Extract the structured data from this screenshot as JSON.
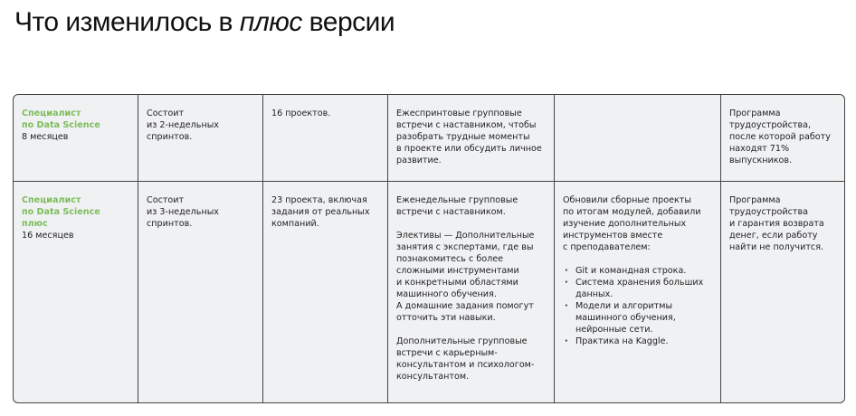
{
  "title": {
    "before": "Что изменилось в ",
    "italic": "плюс",
    "after": " версии"
  },
  "colors": {
    "accent_green": "#7cbd5b",
    "table_bg": "#f0f1f3",
    "border": "#444444"
  },
  "rows": [
    {
      "program": "Специалист\nпо Data Science",
      "duration": "8 месяцев",
      "sprints": "Состоит\nиз 2-недельных\nспринтов.",
      "projects": "16 проектов.",
      "mentoring": [
        "Ежеспринтовые групповые\nвстречи с наставником, чтобы\nразобрать трудные моменты\nв проекте или обсудить личное\nразвитие."
      ],
      "updates_intro": "",
      "updates_list": [],
      "career": "Программа\nтрудоустройства,\nпосле которой работу\nнаходят 71%\nвыпускников."
    },
    {
      "program": "Специалист\nпо Data Science\nплюс",
      "duration": "16 месяцев",
      "sprints": "Состоит\nиз 3-недельных\nспринтов.",
      "projects": "23 проекта, включая\nзадания от реальных\nкомпаний.",
      "mentoring": [
        "Еженедельные групповые\nвстречи с наставником.",
        "Элективы — Дополнительные\nзанятия с экспертами, где вы\nпознакомитесь с более\nсложными инструментами\nи конкретными областями\nмашинного обучения.\nА домашние задания помогут\nотточить эти навыки.",
        "Дополнительные групповые\nвстречи с карьерным-\nконсультантом и психологом-\nконсультантом."
      ],
      "updates_intro": "Обновили сборные проекты\nпо итогам модулей, добавили\nизучение дополнительных\nинструментов вместе\nс преподавателем:",
      "updates_list": [
        "Git и командная строка.",
        "Система хранения больших\nданных.",
        "Модели и алгоритмы\nмашинного обучения,\nнейронные сети.",
        "Практика на Kaggle."
      ],
      "career": "Программа\nтрудоустройства\nи гарантия возврата\nденег, если работу\nнайти не получится."
    }
  ]
}
